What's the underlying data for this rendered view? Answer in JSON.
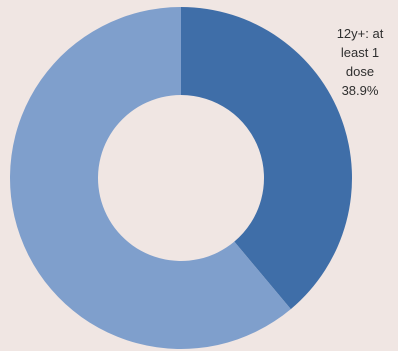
{
  "chart_data": {
    "type": "pie",
    "variant": "donut",
    "title": "",
    "slices": [
      {
        "label_lines": [
          "12y+: at",
          "least 1",
          "dose",
          "38.9%"
        ],
        "value": 38.9,
        "color": "#3f6ea8"
      },
      {
        "label_lines": [],
        "value": 61.1,
        "color": "#7f9fcc"
      }
    ],
    "legend": "none",
    "start_angle_deg": 0,
    "direction": "clockwise"
  }
}
